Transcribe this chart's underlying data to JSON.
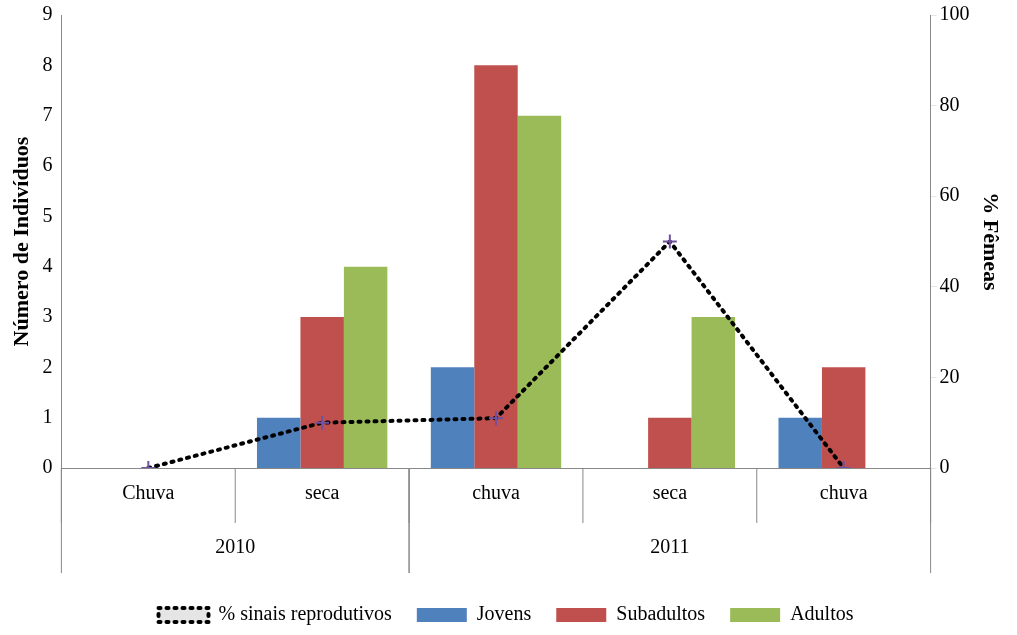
{
  "chart_data": {
    "type": "bar",
    "categories": [
      "Chuva",
      "seca",
      "chuva",
      "seca",
      "chuva"
    ],
    "series": [
      {
        "name": "Jovens",
        "color": "#4f81bd",
        "values": [
          0,
          1,
          2,
          0,
          1
        ]
      },
      {
        "name": "Subadultos",
        "color": "#c0504d",
        "values": [
          0,
          3,
          8,
          1,
          2
        ]
      },
      {
        "name": "Adultos",
        "color": "#9bbb59",
        "values": [
          0,
          4,
          7,
          3,
          0
        ]
      },
      {
        "name": "% sinais reprodutivos",
        "type": "line",
        "axis": "y2",
        "color": "#000000",
        "line_style": "dotted",
        "marker": "cross",
        "values": [
          0,
          10,
          11,
          50,
          0
        ]
      }
    ],
    "ylabel": "Número de Indivíduos",
    "y2label": "% Fêmeas",
    "ylim": [
      0,
      9
    ],
    "yticks": [
      0,
      1,
      2,
      3,
      4,
      5,
      6,
      7,
      8,
      9
    ],
    "y2lim": [
      0,
      100
    ],
    "y2ticks": [
      0,
      20,
      40,
      60,
      80,
      100
    ],
    "annotations": [
      "2010",
      "2011"
    ],
    "grid": false,
    "legend": "bottom"
  }
}
